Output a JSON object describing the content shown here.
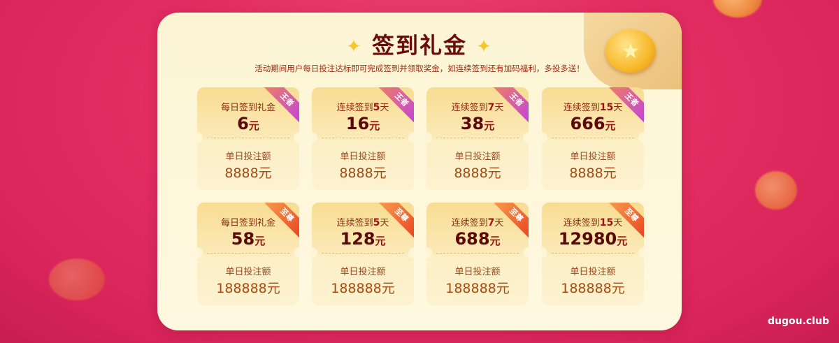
{
  "header": {
    "title": "签到礼金",
    "subtitle": "活动期间用户每日投注达标即可完成签到并领取奖金，如连续签到还有加码福利，多投多送！"
  },
  "colors": {
    "background": "#e32e62",
    "panel": "#fdf5d4",
    "title": "#6a0c0c",
    "badge_king": "#c040e0",
    "badge_supreme": "#e84020"
  },
  "cards": [
    {
      "prefix": "每日签到礼金",
      "days": "",
      "suffix": "",
      "amount": "6",
      "unit": "元",
      "badge": "王者",
      "req_label": "单日投注额",
      "req_value": "8888元"
    },
    {
      "prefix": "连续签到",
      "days": "5",
      "suffix": "天",
      "amount": "16",
      "unit": "元",
      "badge": "王者",
      "req_label": "单日投注额",
      "req_value": "8888元"
    },
    {
      "prefix": "连续签到",
      "days": "7",
      "suffix": "天",
      "amount": "38",
      "unit": "元",
      "badge": "王者",
      "req_label": "单日投注额",
      "req_value": "8888元"
    },
    {
      "prefix": "连续签到",
      "days": "15",
      "suffix": "天",
      "amount": "666",
      "unit": "元",
      "badge": "王者",
      "req_label": "单日投注额",
      "req_value": "8888元"
    },
    {
      "prefix": "每日签到礼金",
      "days": "",
      "suffix": "",
      "amount": "58",
      "unit": "元",
      "badge": "至尊",
      "req_label": "单日投注额",
      "req_value": "188888元"
    },
    {
      "prefix": "连续签到",
      "days": "5",
      "suffix": "天",
      "amount": "128",
      "unit": "元",
      "badge": "至尊",
      "req_label": "单日投注额",
      "req_value": "188888元"
    },
    {
      "prefix": "连续签到",
      "days": "7",
      "suffix": "天",
      "amount": "688",
      "unit": "元",
      "badge": "至尊",
      "req_label": "单日投注额",
      "req_value": "188888元"
    },
    {
      "prefix": "连续签到",
      "days": "15",
      "suffix": "天",
      "amount": "12980",
      "unit": "元",
      "badge": "至尊",
      "req_label": "单日投注额",
      "req_value": "188888元"
    }
  ],
  "watermark": "dugou.club"
}
